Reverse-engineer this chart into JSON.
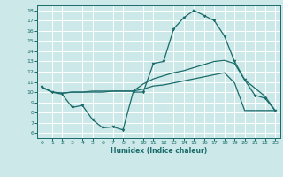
{
  "xlabel": "Humidex (Indice chaleur)",
  "xlim": [
    -0.5,
    23.5
  ],
  "ylim": [
    5.5,
    18.5
  ],
  "xticks": [
    0,
    1,
    2,
    3,
    4,
    5,
    6,
    7,
    8,
    9,
    10,
    11,
    12,
    13,
    14,
    15,
    16,
    17,
    18,
    19,
    20,
    21,
    22,
    23
  ],
  "yticks": [
    6,
    7,
    8,
    9,
    10,
    11,
    12,
    13,
    14,
    15,
    16,
    17,
    18
  ],
  "bg_color": "#cce8e8",
  "line_color": "#1a6b6b",
  "grid_color": "#ffffff",
  "curve1_x": [
    0,
    1,
    2,
    3,
    4,
    5,
    6,
    7,
    8,
    9,
    10,
    11,
    12,
    13,
    14,
    15,
    16,
    17,
    18,
    19,
    20,
    21,
    22,
    23
  ],
  "curve1_y": [
    10.5,
    10.0,
    9.8,
    8.5,
    8.7,
    7.3,
    6.5,
    6.6,
    6.3,
    10.0,
    10.0,
    12.8,
    13.0,
    16.2,
    17.3,
    18.0,
    17.5,
    17.0,
    15.5,
    13.0,
    11.2,
    9.7,
    9.4,
    8.2
  ],
  "curve2_x": [
    0,
    1,
    2,
    3,
    4,
    5,
    6,
    7,
    8,
    9,
    10,
    11,
    12,
    13,
    14,
    15,
    16,
    17,
    18,
    19,
    20,
    21,
    22,
    23
  ],
  "curve2_y": [
    10.5,
    10.0,
    9.9,
    10.0,
    10.0,
    10.0,
    10.0,
    10.1,
    10.1,
    10.1,
    10.8,
    11.3,
    11.6,
    11.9,
    12.1,
    12.4,
    12.7,
    13.0,
    13.1,
    12.8,
    11.2,
    10.4,
    9.6,
    8.2
  ],
  "curve3_x": [
    0,
    1,
    2,
    3,
    4,
    5,
    6,
    7,
    8,
    9,
    10,
    11,
    12,
    13,
    14,
    15,
    16,
    17,
    18,
    19,
    20,
    21,
    22,
    23
  ],
  "curve3_y": [
    10.5,
    10.0,
    9.9,
    10.0,
    10.0,
    10.1,
    10.1,
    10.1,
    10.1,
    10.1,
    10.3,
    10.6,
    10.7,
    10.9,
    11.1,
    11.3,
    11.5,
    11.7,
    11.9,
    10.9,
    8.2,
    8.2,
    8.2,
    8.2
  ]
}
